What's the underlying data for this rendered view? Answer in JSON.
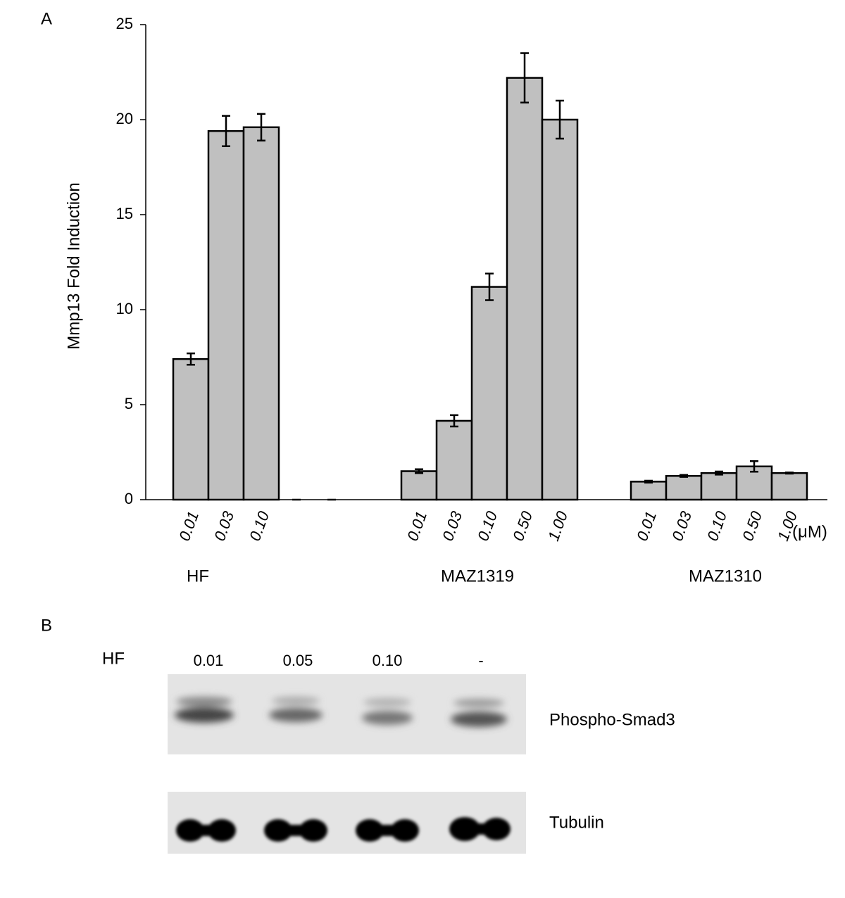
{
  "chart_data": {
    "type": "bar",
    "panel_label": "A",
    "y_label": "Mmp13 Fold Induction",
    "unit_label": "(μM)",
    "ylim": [
      0,
      25
    ],
    "yticks": [
      0,
      5,
      10,
      15,
      20,
      25
    ],
    "color": "#c0c0c0",
    "groups": [
      {
        "name": "HF",
        "categories": [
          "0.01",
          "0.03",
          "0.10",
          null,
          null
        ],
        "values": [
          7.4,
          19.4,
          19.6,
          0,
          0
        ],
        "errors": [
          0.3,
          0.8,
          0.7,
          0,
          0
        ]
      },
      {
        "name": "MAZ1319",
        "categories": [
          "0.01",
          "0.03",
          "0.10",
          "0.50",
          "1.00"
        ],
        "values": [
          1.5,
          4.15,
          11.2,
          22.2,
          20.0
        ],
        "errors": [
          0.1,
          0.3,
          0.7,
          1.3,
          1.0
        ]
      },
      {
        "name": "MAZ1310",
        "categories": [
          "0.01",
          "0.03",
          "0.10",
          "0.50",
          "1.00"
        ],
        "values": [
          0.95,
          1.25,
          1.4,
          1.75,
          1.4
        ],
        "errors": [
          0.05,
          0.05,
          0.08,
          0.28,
          0.03
        ]
      }
    ]
  },
  "blot": {
    "panel_label": "B",
    "treatment_label": "HF",
    "lanes": [
      "0.01",
      "0.05",
      "0.10",
      "-"
    ],
    "rows": [
      "Phospho-Smad3",
      "Tubulin"
    ]
  }
}
